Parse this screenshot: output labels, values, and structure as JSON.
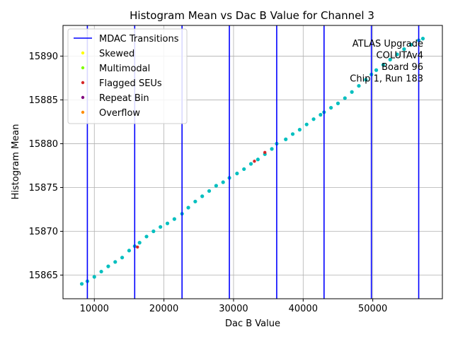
{
  "chart_data": {
    "type": "scatter",
    "title": "Histogram Mean vs Dac B Value for Channel 3",
    "xlabel": "Dac B Value",
    "ylabel": "Histogram Mean",
    "xlim": [
      5500,
      60000
    ],
    "ylim": [
      15862.3,
      15893.5
    ],
    "x_ticks": [
      10000,
      20000,
      30000,
      40000,
      50000
    ],
    "x_tick_labels": [
      "10000",
      "20000",
      "30000",
      "40000",
      "50000"
    ],
    "y_ticks": [
      15865,
      15870,
      15875,
      15880,
      15885,
      15890
    ],
    "y_tick_labels": [
      "15865",
      "15870",
      "15875",
      "15880",
      "15885",
      "15890"
    ],
    "grid": true,
    "legend_position": "top-left",
    "legend": [
      {
        "label": "MDAC Transitions",
        "kind": "line",
        "color": "#0000ff"
      },
      {
        "label": "Skewed",
        "kind": "marker",
        "color": "#ffff00"
      },
      {
        "label": "Multimodal",
        "kind": "marker",
        "color": "#7fff00"
      },
      {
        "label": "Flagged SEUs",
        "kind": "marker",
        "color": "#d62728"
      },
      {
        "label": "Repeat Bin",
        "kind": "marker",
        "color": "#800080"
      },
      {
        "label": "Overflow",
        "kind": "marker",
        "color": "#ff8c00"
      }
    ],
    "annotation_lines": [
      "ATLAS Upgrade",
      "COLUTAv4",
      "Board 96",
      "Chip 1, Run 183"
    ],
    "mdac_transitions": [
      9000,
      15800,
      22600,
      29400,
      36200,
      43000,
      49800,
      56600
    ],
    "main_series": {
      "name": "Data",
      "color": "#00bfbf",
      "x": [
        8200,
        9000,
        10000,
        11000,
        12000,
        13000,
        14000,
        15000,
        15800,
        16500,
        17500,
        18500,
        19500,
        20500,
        21500,
        22600,
        23500,
        24500,
        25500,
        26500,
        27500,
        28500,
        29400,
        30500,
        31500,
        32500,
        33500,
        34500,
        35500,
        36200,
        37500,
        38500,
        39500,
        40500,
        41500,
        42500,
        43000,
        44000,
        45000,
        46000,
        47000,
        48000,
        49000,
        49800,
        50500,
        51500,
        52500,
        53500,
        54500,
        55500,
        56600,
        57200
      ],
      "y": [
        15864.0,
        15864.3,
        15864.8,
        15865.4,
        15866.0,
        15866.5,
        15867.0,
        15867.8,
        15868.3,
        15868.7,
        15869.4,
        15870.0,
        15870.5,
        15870.9,
        15871.4,
        15872.0,
        15872.7,
        15873.4,
        15874.0,
        15874.6,
        15875.2,
        15875.6,
        15876.1,
        15876.6,
        15877.1,
        15877.7,
        15878.2,
        15878.8,
        15879.4,
        15880.0,
        15880.5,
        15881.1,
        15881.6,
        15882.2,
        15882.8,
        15883.3,
        15883.6,
        15884.1,
        15884.6,
        15885.2,
        15885.9,
        15886.6,
        15887.3,
        15887.9,
        15888.4,
        15889.0,
        15889.6,
        15890.2,
        15890.8,
        15891.3,
        15891.8,
        15892.0
      ]
    },
    "flagged_points": {
      "name": "Flagged SEUs",
      "color": "#d62728",
      "x": [
        16200,
        33000,
        34500
      ],
      "y": [
        15868.2,
        15878.0,
        15879.0
      ]
    }
  }
}
